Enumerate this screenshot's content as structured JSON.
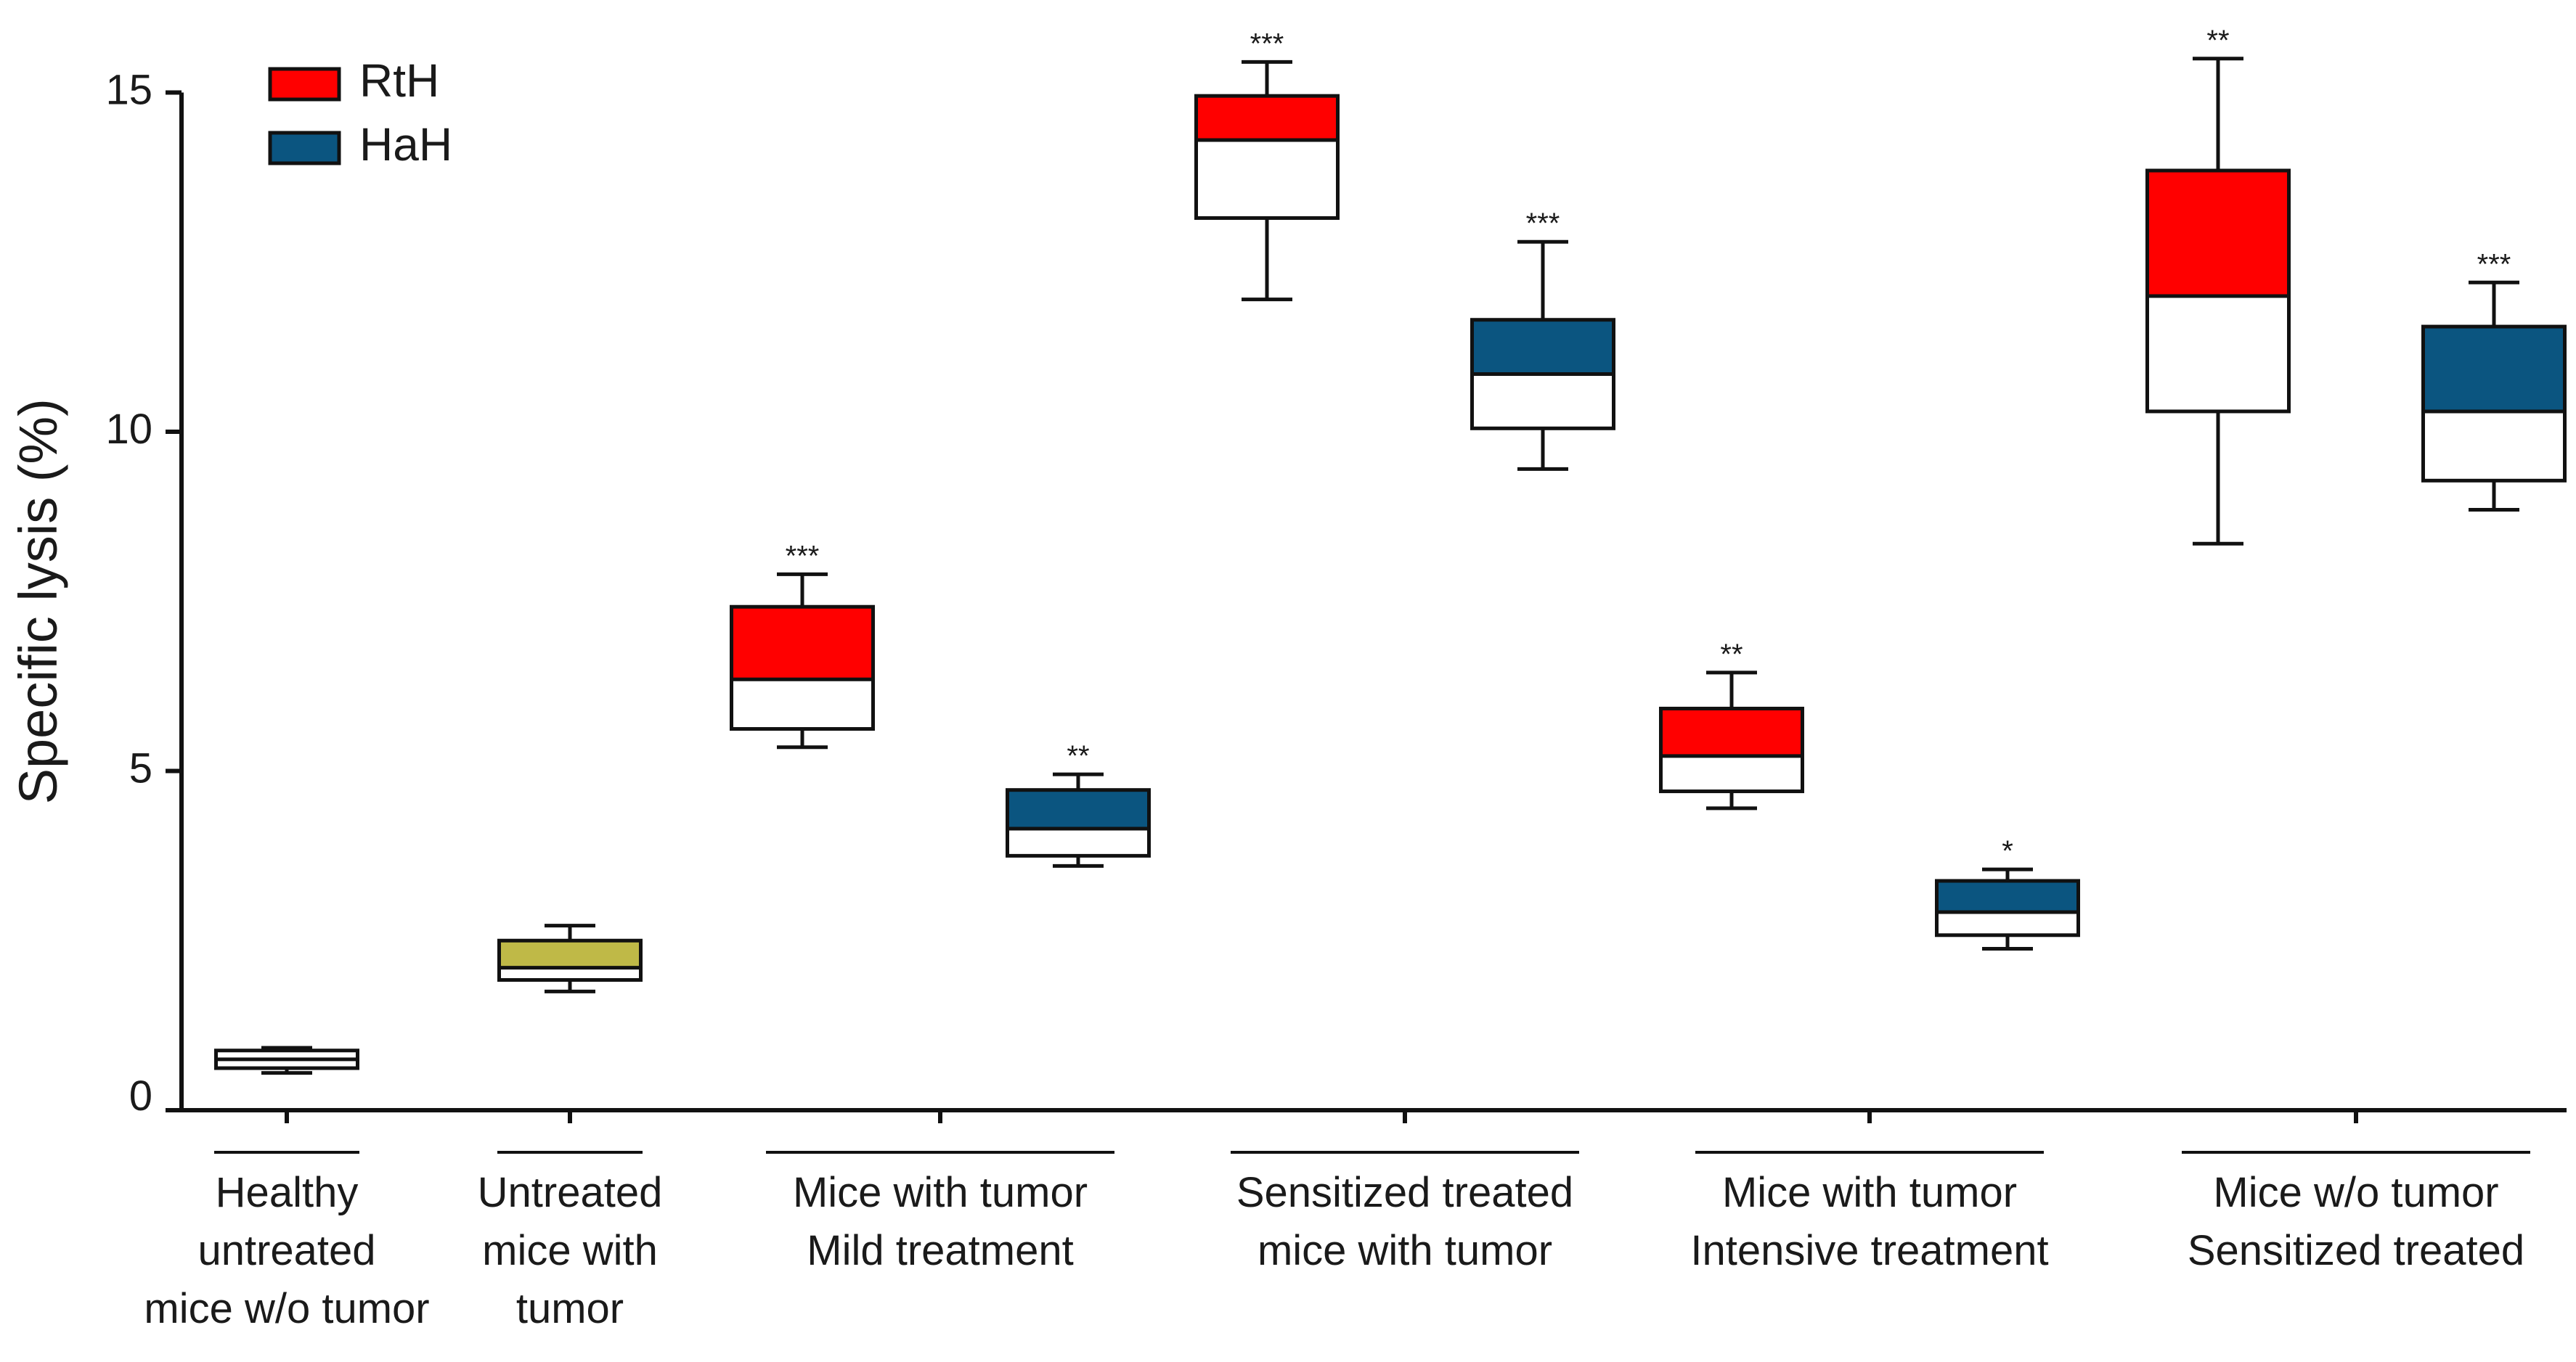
{
  "chart_data": {
    "type": "box",
    "title": "",
    "ylabel": "Specific lysis (%)",
    "xlabel": "",
    "ylim": [
      0,
      15
    ],
    "yticks": [
      0,
      5,
      10,
      15
    ],
    "grid": false,
    "legend": {
      "position": "top-left",
      "entries": [
        {
          "name": "RtH",
          "color": "#ff0000"
        },
        {
          "name": "HaH",
          "color": "#0b5580"
        }
      ]
    },
    "colors": {
      "RtH": "#ff0000",
      "HaH": "#0b5580",
      "control": "#bfb947",
      "axis": "#111111"
    },
    "groups": [
      {
        "label_lines": [
          "Healthy",
          "untreated",
          "mice w/o tumor"
        ]
      },
      {
        "label_lines": [
          "Untreated",
          "mice with",
          "tumor"
        ]
      },
      {
        "label_lines": [
          "Mice with tumor",
          "Mild treatment"
        ]
      },
      {
        "label_lines": [
          "Sensitized treated",
          "mice with tumor"
        ]
      },
      {
        "label_lines": [
          "Mice with tumor",
          "Intensive treatment"
        ]
      },
      {
        "label_lines": [
          "Mice w/o tumor",
          "Sensitized treated"
        ]
      }
    ],
    "boxes": [
      {
        "group": 0,
        "series": "control",
        "fill": "#ffffff",
        "whisker_low": 0.55,
        "q1": 0.62,
        "median": 0.75,
        "q3": 0.88,
        "whisker_high": 0.92,
        "significance": ""
      },
      {
        "group": 1,
        "series": "control",
        "fill": "#bfb947",
        "whisker_low": 1.75,
        "q1": 1.92,
        "median": 2.1,
        "q3": 2.5,
        "whisker_high": 2.72,
        "significance": ""
      },
      {
        "group": 2,
        "series": "RtH",
        "fill": "#ff0000",
        "whisker_low": 5.35,
        "q1": 5.62,
        "median": 6.35,
        "q3": 7.42,
        "whisker_high": 7.9,
        "significance": "***"
      },
      {
        "group": 2,
        "series": "HaH",
        "fill": "#0b5580",
        "whisker_low": 3.6,
        "q1": 3.75,
        "median": 4.15,
        "q3": 4.72,
        "whisker_high": 4.95,
        "significance": "**"
      },
      {
        "group": 3,
        "series": "RtH",
        "fill": "#ff0000",
        "whisker_low": 11.95,
        "q1": 13.15,
        "median": 14.3,
        "q3": 14.95,
        "whisker_high": 15.45,
        "significance": "***"
      },
      {
        "group": 3,
        "series": "HaH",
        "fill": "#0b5580",
        "whisker_low": 9.45,
        "q1": 10.05,
        "median": 10.85,
        "q3": 11.65,
        "whisker_high": 12.8,
        "significance": "***"
      },
      {
        "group": 4,
        "series": "RtH",
        "fill": "#ff0000",
        "whisker_low": 4.45,
        "q1": 4.7,
        "median": 5.22,
        "q3": 5.92,
        "whisker_high": 6.45,
        "significance": "**"
      },
      {
        "group": 4,
        "series": "HaH",
        "fill": "#0b5580",
        "whisker_low": 2.38,
        "q1": 2.58,
        "median": 2.92,
        "q3": 3.38,
        "whisker_high": 3.55,
        "significance": "*"
      },
      {
        "group": 5,
        "series": "RtH",
        "fill": "#ff0000",
        "whisker_low": 8.35,
        "q1": 10.3,
        "median": 12.0,
        "q3": 13.85,
        "whisker_high": 15.5,
        "significance": "**"
      },
      {
        "group": 5,
        "series": "HaH",
        "fill": "#0b5580",
        "whisker_low": 8.85,
        "q1": 9.28,
        "median": 10.3,
        "q3": 11.55,
        "whisker_high": 12.2,
        "significance": "***"
      }
    ]
  }
}
